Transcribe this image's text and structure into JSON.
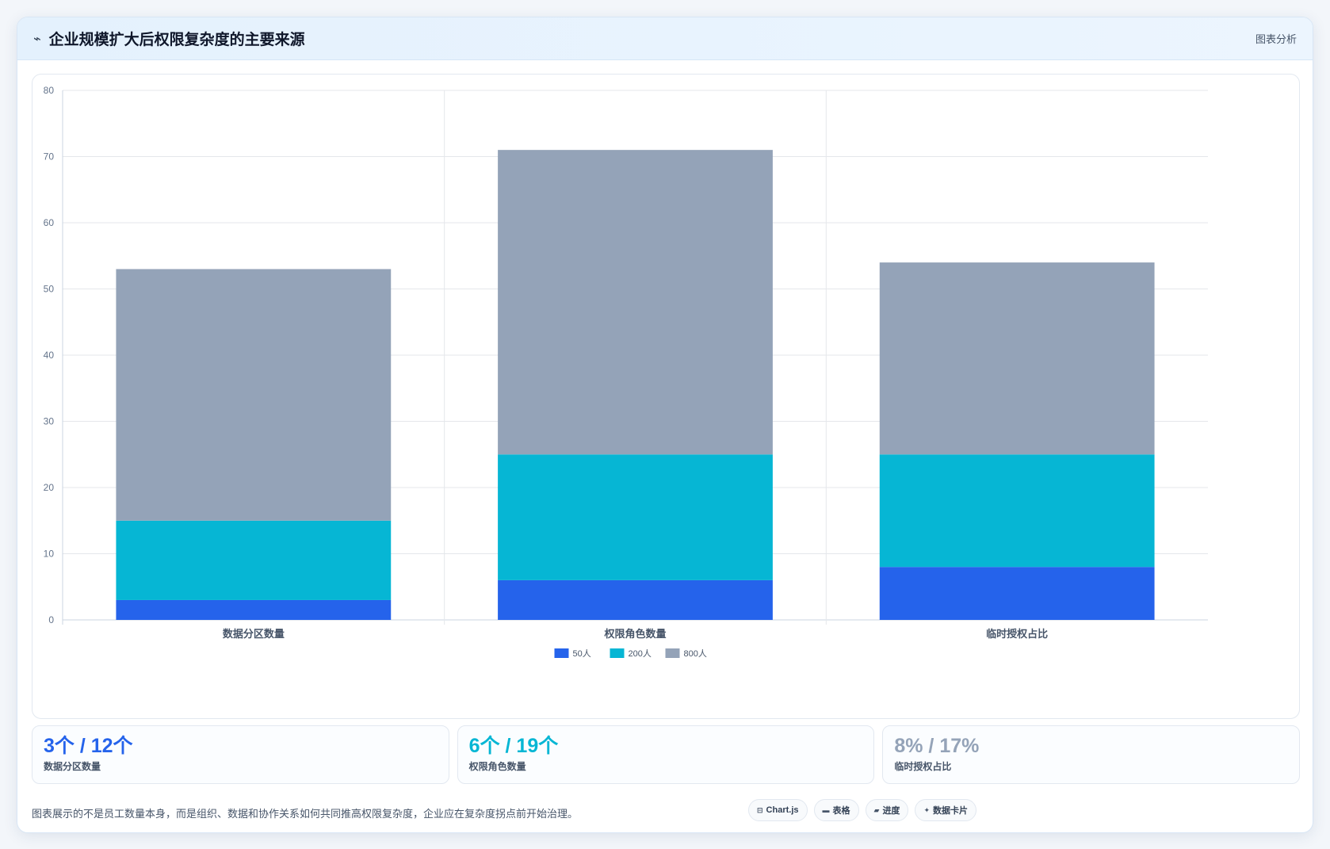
{
  "header": {
    "icon": "line-chart-icon",
    "title": "企业规模扩大后权限复杂度的主要来源",
    "tag": "图表分析"
  },
  "chart_data": {
    "type": "bar",
    "stacked": true,
    "categories": [
      "数据分区数量",
      "权限角色数量",
      "临时授权占比"
    ],
    "series": [
      {
        "name": "50人",
        "color": "#2563eb",
        "values": [
          3,
          6,
          8
        ]
      },
      {
        "name": "200人",
        "color": "#06b6d4",
        "values": [
          12,
          19,
          17
        ]
      },
      {
        "name": "800人",
        "color": "#94a3b8",
        "values": [
          38,
          46,
          29
        ]
      }
    ],
    "ylim": [
      0,
      80
    ],
    "yticks": [
      0,
      10,
      20,
      30,
      40,
      50,
      60,
      70,
      80
    ],
    "grid": true,
    "legend": "bottom"
  },
  "stats": [
    {
      "value": "3个 / 12个",
      "label": "数据分区数量",
      "color": "#2563eb"
    },
    {
      "value": "6个 / 19个",
      "label": "权限角色数量",
      "color": "#06b6d4"
    },
    {
      "value": "8% / 17%",
      "label": "临时授权占比",
      "color": "#94a3b8"
    }
  ],
  "footer": {
    "text": "图表展示的不是员工数量本身，而是组织、数据和协作关系如何共同推高权限复杂度，企业应在复杂度拐点前开始治理。",
    "tags": [
      {
        "icon": "chart-icon",
        "glyph": "⊟",
        "label": "Chart.js"
      },
      {
        "icon": "table-icon",
        "glyph": "▬",
        "label": "表格"
      },
      {
        "icon": "progress-icon",
        "glyph": "▰",
        "label": "进度"
      },
      {
        "icon": "sparkle-icon",
        "glyph": "✦",
        "label": "数据卡片"
      }
    ]
  }
}
